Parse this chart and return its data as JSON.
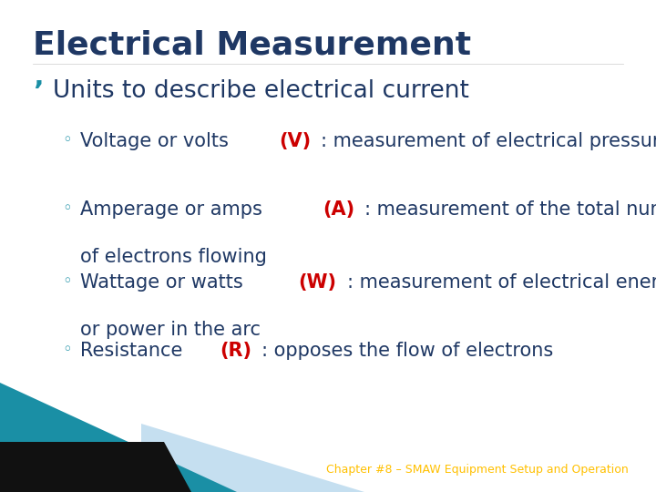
{
  "title": "Electrical Measurement",
  "title_color": "#1F3864",
  "title_fontsize": 26,
  "bullet1": "Units to describe electrical current",
  "bullet1_color": "#1F3864",
  "bullet1_fontsize": 19,
  "sub_bullets": [
    {
      "pre": "Voltage or volts ",
      "highlight": "(V)",
      "post": ": measurement of electrical pressure",
      "post2": "",
      "highlight_color": "#CC0000"
    },
    {
      "pre": "Amperage or amps ",
      "highlight": "(A)",
      "post": ": measurement of the total number",
      "post2": "of electrons flowing",
      "highlight_color": "#CC0000"
    },
    {
      "pre": "Wattage or watts ",
      "highlight": "(W)",
      "post": ": measurement of electrical energy",
      "post2": "or power in the arc",
      "highlight_color": "#CC0000"
    },
    {
      "pre": "Resistance ",
      "highlight": "(R)",
      "post": ": opposes the flow of electrons",
      "post2": "",
      "highlight_color": "#CC0000"
    }
  ],
  "sub_bullet_color": "#1F3864",
  "sub_bullet_fontsize": 15,
  "footer": "Chapter #8 – SMAW Equipment Setup and Operation",
  "footer_color": "#FFC000",
  "footer_fontsize": 9,
  "bg_color": "#FFFFFF",
  "teal_color": "#1A8FA5",
  "black_color": "#111111",
  "lightblue_color": "#C5DFF0"
}
